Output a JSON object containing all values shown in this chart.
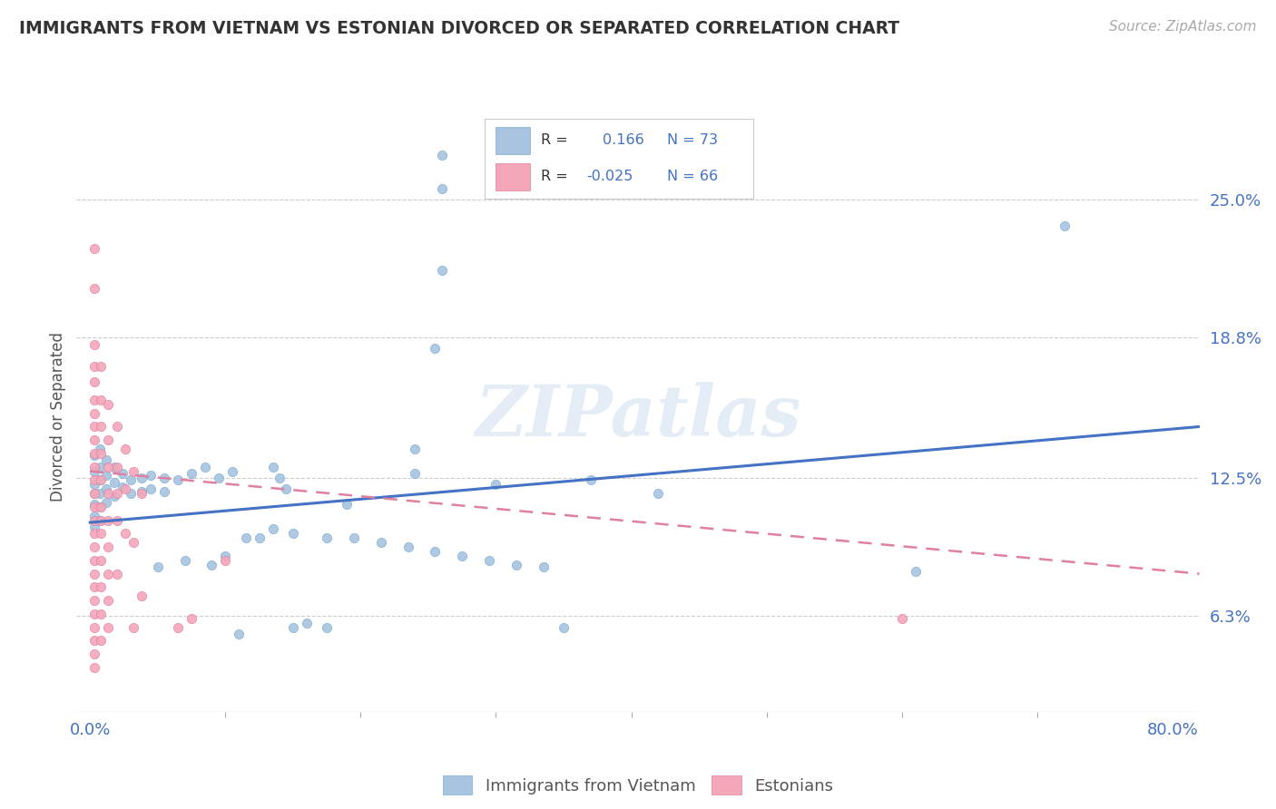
{
  "title": "IMMIGRANTS FROM VIETNAM VS ESTONIAN DIVORCED OR SEPARATED CORRELATION CHART",
  "source_text": "Source: ZipAtlas.com",
  "ylabel": "Divorced or Separated",
  "watermark": "ZIPatlas",
  "xlim": [
    -0.01,
    0.82
  ],
  "ylim": [
    0.02,
    0.285
  ],
  "xtick_labels_ends": [
    "0.0%",
    "80.0%"
  ],
  "xtick_vals_ends": [
    0.0,
    0.8
  ],
  "xtick_minor_vals": [
    0.0,
    0.1,
    0.2,
    0.3,
    0.4,
    0.5,
    0.6,
    0.7,
    0.8
  ],
  "ytick_right_labels": [
    "6.3%",
    "12.5%",
    "18.8%",
    "25.0%"
  ],
  "ytick_right_vals": [
    0.063,
    0.125,
    0.188,
    0.25
  ],
  "R_blue": "0.166",
  "N_blue": "73",
  "R_pink": "-0.025",
  "N_pink": "66",
  "blue_color": "#a8c4e0",
  "pink_color": "#f4a7b9",
  "blue_line_color": "#4472c4",
  "blue_scatter": [
    [
      0.003,
      0.135
    ],
    [
      0.003,
      0.128
    ],
    [
      0.003,
      0.122
    ],
    [
      0.003,
      0.118
    ],
    [
      0.003,
      0.113
    ],
    [
      0.003,
      0.108
    ],
    [
      0.003,
      0.103
    ],
    [
      0.007,
      0.138
    ],
    [
      0.007,
      0.13
    ],
    [
      0.007,
      0.124
    ],
    [
      0.007,
      0.118
    ],
    [
      0.007,
      0.112
    ],
    [
      0.007,
      0.106
    ],
    [
      0.012,
      0.133
    ],
    [
      0.012,
      0.126
    ],
    [
      0.012,
      0.12
    ],
    [
      0.012,
      0.114
    ],
    [
      0.018,
      0.13
    ],
    [
      0.018,
      0.123
    ],
    [
      0.018,
      0.117
    ],
    [
      0.024,
      0.127
    ],
    [
      0.024,
      0.121
    ],
    [
      0.03,
      0.124
    ],
    [
      0.03,
      0.118
    ],
    [
      0.038,
      0.125
    ],
    [
      0.038,
      0.119
    ],
    [
      0.045,
      0.126
    ],
    [
      0.045,
      0.12
    ],
    [
      0.055,
      0.125
    ],
    [
      0.055,
      0.119
    ],
    [
      0.065,
      0.124
    ],
    [
      0.075,
      0.127
    ],
    [
      0.085,
      0.13
    ],
    [
      0.095,
      0.125
    ],
    [
      0.105,
      0.128
    ],
    [
      0.115,
      0.098
    ],
    [
      0.125,
      0.098
    ],
    [
      0.135,
      0.102
    ],
    [
      0.15,
      0.1
    ],
    [
      0.175,
      0.098
    ],
    [
      0.195,
      0.098
    ],
    [
      0.215,
      0.096
    ],
    [
      0.235,
      0.094
    ],
    [
      0.255,
      0.092
    ],
    [
      0.275,
      0.09
    ],
    [
      0.295,
      0.088
    ],
    [
      0.315,
      0.086
    ],
    [
      0.335,
      0.085
    ],
    [
      0.05,
      0.085
    ],
    [
      0.07,
      0.088
    ],
    [
      0.09,
      0.086
    ],
    [
      0.11,
      0.055
    ],
    [
      0.15,
      0.058
    ],
    [
      0.16,
      0.06
    ],
    [
      0.175,
      0.058
    ],
    [
      0.19,
      0.113
    ],
    [
      0.24,
      0.138
    ],
    [
      0.24,
      0.127
    ],
    [
      0.255,
      0.183
    ],
    [
      0.26,
      0.218
    ],
    [
      0.26,
      0.27
    ],
    [
      0.26,
      0.255
    ],
    [
      0.35,
      0.058
    ],
    [
      0.37,
      0.124
    ],
    [
      0.72,
      0.238
    ],
    [
      0.61,
      0.083
    ],
    [
      0.135,
      0.13
    ],
    [
      0.14,
      0.125
    ],
    [
      0.145,
      0.12
    ],
    [
      0.1,
      0.09
    ],
    [
      0.42,
      0.118
    ],
    [
      0.3,
      0.122
    ]
  ],
  "pink_scatter": [
    [
      0.003,
      0.228
    ],
    [
      0.003,
      0.21
    ],
    [
      0.003,
      0.185
    ],
    [
      0.003,
      0.175
    ],
    [
      0.003,
      0.168
    ],
    [
      0.003,
      0.16
    ],
    [
      0.003,
      0.154
    ],
    [
      0.003,
      0.148
    ],
    [
      0.003,
      0.142
    ],
    [
      0.003,
      0.136
    ],
    [
      0.003,
      0.13
    ],
    [
      0.003,
      0.124
    ],
    [
      0.003,
      0.118
    ],
    [
      0.003,
      0.112
    ],
    [
      0.003,
      0.106
    ],
    [
      0.003,
      0.1
    ],
    [
      0.003,
      0.094
    ],
    [
      0.003,
      0.088
    ],
    [
      0.003,
      0.082
    ],
    [
      0.003,
      0.076
    ],
    [
      0.003,
      0.07
    ],
    [
      0.003,
      0.064
    ],
    [
      0.003,
      0.058
    ],
    [
      0.003,
      0.052
    ],
    [
      0.003,
      0.046
    ],
    [
      0.003,
      0.04
    ],
    [
      0.008,
      0.175
    ],
    [
      0.008,
      0.16
    ],
    [
      0.008,
      0.148
    ],
    [
      0.008,
      0.136
    ],
    [
      0.008,
      0.124
    ],
    [
      0.008,
      0.112
    ],
    [
      0.008,
      0.106
    ],
    [
      0.008,
      0.1
    ],
    [
      0.008,
      0.088
    ],
    [
      0.008,
      0.076
    ],
    [
      0.008,
      0.064
    ],
    [
      0.008,
      0.052
    ],
    [
      0.013,
      0.158
    ],
    [
      0.013,
      0.142
    ],
    [
      0.013,
      0.13
    ],
    [
      0.013,
      0.118
    ],
    [
      0.013,
      0.106
    ],
    [
      0.013,
      0.094
    ],
    [
      0.013,
      0.082
    ],
    [
      0.013,
      0.07
    ],
    [
      0.013,
      0.058
    ],
    [
      0.02,
      0.148
    ],
    [
      0.02,
      0.13
    ],
    [
      0.02,
      0.118
    ],
    [
      0.02,
      0.106
    ],
    [
      0.02,
      0.082
    ],
    [
      0.026,
      0.138
    ],
    [
      0.026,
      0.12
    ],
    [
      0.026,
      0.1
    ],
    [
      0.032,
      0.128
    ],
    [
      0.032,
      0.096
    ],
    [
      0.032,
      0.058
    ],
    [
      0.038,
      0.118
    ],
    [
      0.038,
      0.072
    ],
    [
      0.065,
      0.058
    ],
    [
      0.075,
      0.062
    ],
    [
      0.1,
      0.088
    ],
    [
      0.6,
      0.062
    ]
  ],
  "blue_trend_x": [
    0.0,
    0.82
  ],
  "blue_trend_y": [
    0.105,
    0.148
  ],
  "pink_trend_x": [
    0.0,
    0.82
  ],
  "pink_trend_y": [
    0.128,
    0.082
  ],
  "background_color": "#ffffff",
  "grid_color": "#cccccc",
  "legend_R_color": "#333333",
  "legend_val_color": "#4472c4"
}
